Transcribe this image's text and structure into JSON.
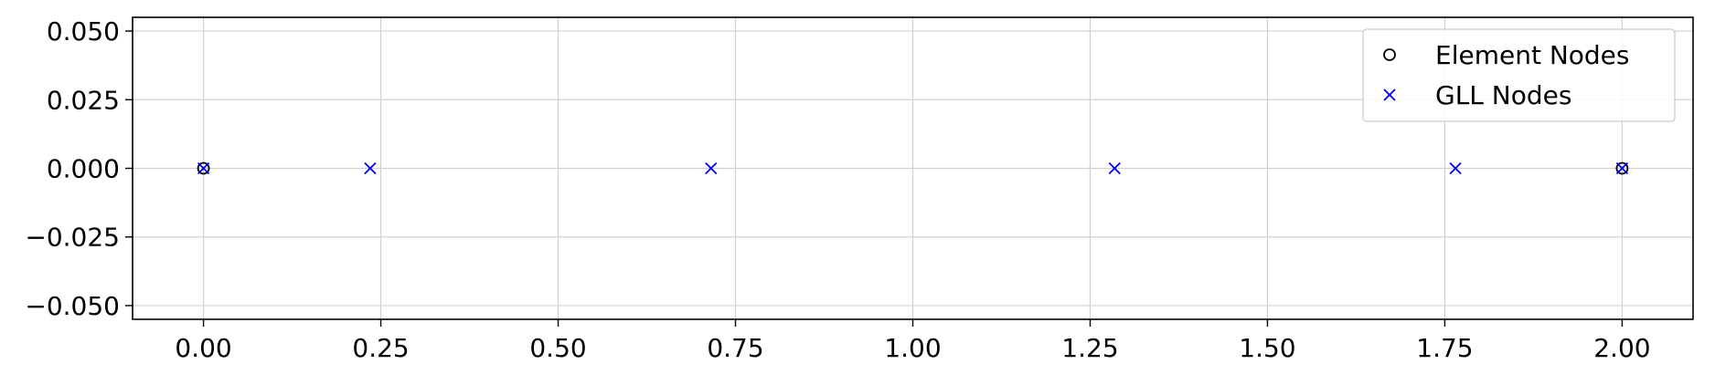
{
  "chart_data": {
    "type": "scatter",
    "title": "",
    "xlabel": "",
    "ylabel": "",
    "xlim": [
      -0.1,
      2.1
    ],
    "ylim": [
      -0.055,
      0.055
    ],
    "grid": true,
    "legend_position": "top-right",
    "x_ticks": [
      0.0,
      0.25,
      0.5,
      0.75,
      1.0,
      1.25,
      1.5,
      1.75,
      2.0
    ],
    "x_tick_labels": [
      "0.00",
      "0.25",
      "0.50",
      "0.75",
      "1.00",
      "1.25",
      "1.50",
      "1.75",
      "2.00"
    ],
    "y_ticks": [
      0.05,
      0.025,
      0.0,
      -0.025,
      -0.05
    ],
    "y_tick_labels": [
      "0.050",
      "0.025",
      "0.000",
      "−0.025",
      "−0.050"
    ],
    "series": [
      {
        "name": "Element Nodes",
        "marker": "circle",
        "color": "#000000",
        "x": [
          0.0,
          2.0
        ],
        "y": [
          0.0,
          0.0
        ]
      },
      {
        "name": "GLL Nodes",
        "marker": "x",
        "color": "#0000ff",
        "x": [
          0.0,
          0.235,
          0.7155,
          1.2845,
          1.765,
          2.0
        ],
        "y": [
          0.0,
          0.0,
          0.0,
          0.0,
          0.0,
          0.0
        ]
      }
    ]
  }
}
